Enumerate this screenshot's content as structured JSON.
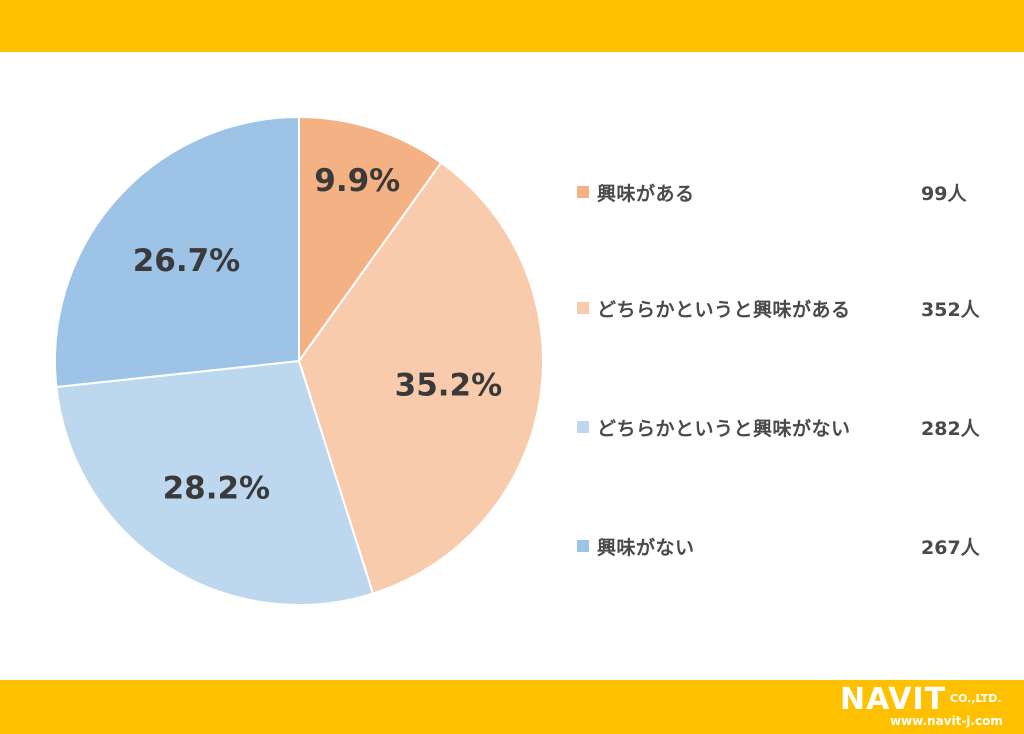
{
  "theme": {
    "band_color": "#ffc000"
  },
  "chart_data": {
    "type": "pie",
    "slices": [
      {
        "label": "興味がある",
        "percent": 9.9,
        "percent_label": "9.9%",
        "count_label": "99人",
        "color": "#f4b183"
      },
      {
        "label": "どちらかというと興味がある",
        "percent": 35.2,
        "percent_label": "35.2%",
        "count_label": "352人",
        "color": "#f8cbad"
      },
      {
        "label": "どちらかというと興味がない",
        "percent": 28.2,
        "percent_label": "28.2%",
        "count_label": "282人",
        "color": "#bdd7ee"
      },
      {
        "label": "興味がない",
        "percent": 26.7,
        "percent_label": "26.7%",
        "count_label": "267人",
        "color": "#9dc3e6"
      }
    ],
    "start_angle": "12 o'clock",
    "direction": "clockwise",
    "legend_position": "right"
  },
  "logo": {
    "main": "NAVIT",
    "company": "CO.,LTD.",
    "url": "www.navit-j.com"
  }
}
